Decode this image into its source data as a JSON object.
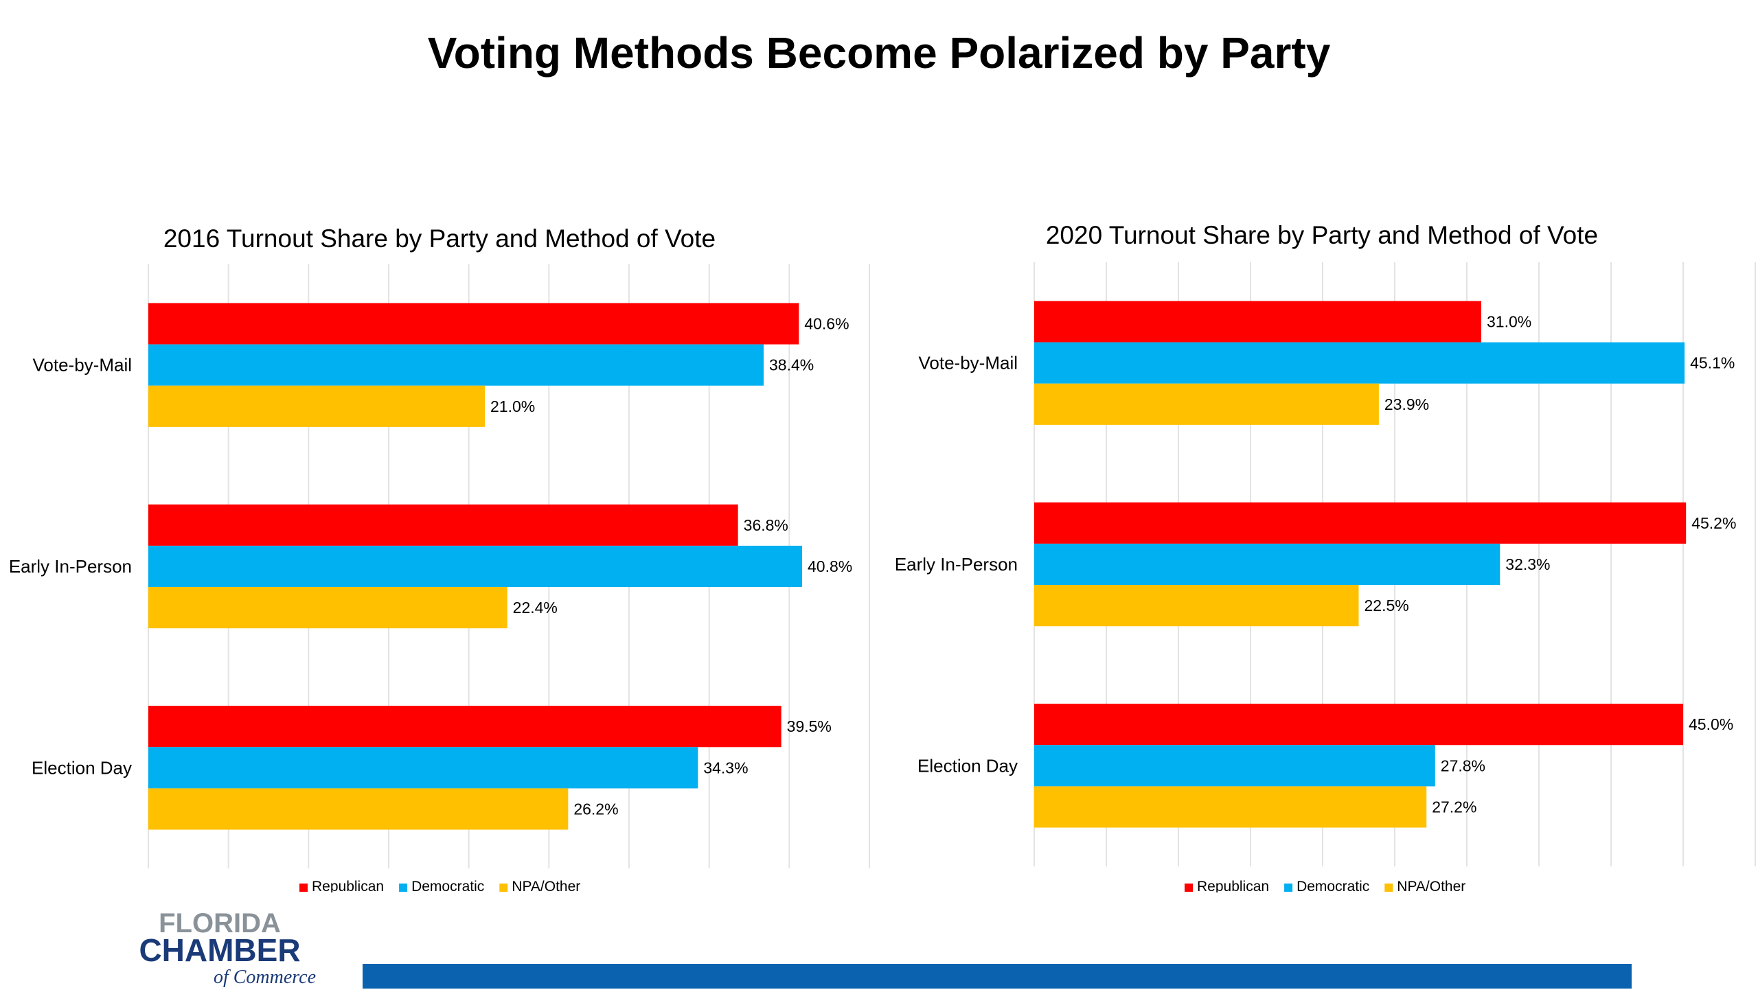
{
  "title": "Voting Methods Become Polarized by Party",
  "colors": {
    "Republican": "#ff0000",
    "Democratic": "#00b0f0",
    "NPA/Other": "#ffc000"
  },
  "logo": {
    "line1": "FLORIDA",
    "line2": "CHAMBER",
    "line3": "of Commerce"
  },
  "chart_data": [
    {
      "type": "bar",
      "orientation": "horizontal",
      "title": "2016 Turnout Share by Party and Method of Vote",
      "categories": [
        "Vote-by-Mail",
        "Early In-Person",
        "Election Day"
      ],
      "series": [
        {
          "name": "Republican",
          "values": [
            40.6,
            36.8,
            39.5
          ],
          "labels": [
            "40.6%",
            "36.8%",
            "39.5%"
          ]
        },
        {
          "name": "Democratic",
          "values": [
            38.4,
            40.8,
            34.3
          ],
          "labels": [
            "38.4%",
            "40.8%",
            "34.3%"
          ]
        },
        {
          "name": "NPA/Other",
          "values": [
            21.0,
            22.4,
            26.2
          ],
          "labels": [
            "21.0%",
            "22.4%",
            "26.2%"
          ]
        }
      ],
      "xlim": [
        0,
        45
      ],
      "grid": true,
      "legend": "bottom"
    },
    {
      "type": "bar",
      "orientation": "horizontal",
      "title": "2020 Turnout Share by Party and Method of Vote",
      "categories": [
        "Vote-by-Mail",
        "Early In-Person",
        "Election Day"
      ],
      "series": [
        {
          "name": "Republican",
          "values": [
            31.0,
            45.2,
            45.0
          ],
          "labels": [
            "31.0%",
            "45.2%",
            "45.0%"
          ]
        },
        {
          "name": "Democratic",
          "values": [
            45.1,
            32.3,
            27.8
          ],
          "labels": [
            "45.1%",
            "32.3%",
            "27.8%"
          ]
        },
        {
          "name": "NPA/Other",
          "values": [
            23.9,
            22.5,
            27.2
          ],
          "labels": [
            "23.9%",
            "22.5%",
            "27.2%"
          ]
        }
      ],
      "xlim": [
        0,
        50
      ],
      "grid": true,
      "legend": "bottom"
    }
  ]
}
